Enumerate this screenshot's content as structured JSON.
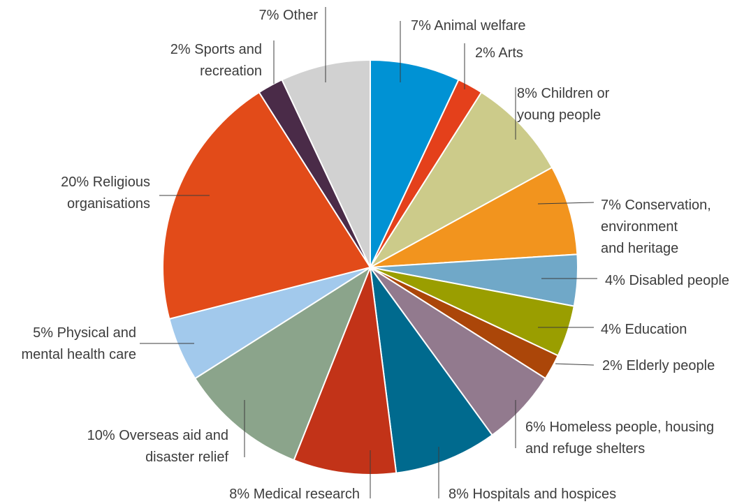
{
  "chart_data": {
    "type": "pie",
    "slices": [
      {
        "key": "animal",
        "label_lines": [
          "7% Animal welfare"
        ],
        "value": 7,
        "color": "#0092d4"
      },
      {
        "key": "arts",
        "label_lines": [
          "2% Arts"
        ],
        "value": 2,
        "color": "#e4401b"
      },
      {
        "key": "children",
        "label_lines": [
          "8% Children or",
          "young people"
        ],
        "value": 8,
        "color": "#cccb8a"
      },
      {
        "key": "conservation",
        "label_lines": [
          "7% Conservation,",
          "environment",
          "and heritage"
        ],
        "value": 7,
        "color": "#f2941e"
      },
      {
        "key": "disabled",
        "label_lines": [
          "4% Disabled people"
        ],
        "value": 4,
        "color": "#70a8c8"
      },
      {
        "key": "education",
        "label_lines": [
          "4% Education"
        ],
        "value": 4,
        "color": "#9a9e00"
      },
      {
        "key": "elderly",
        "label_lines": [
          "2% Elderly people"
        ],
        "value": 2,
        "color": "#ab4609"
      },
      {
        "key": "homeless",
        "label_lines": [
          "6% Homeless people, housing",
          "and refuge shelters"
        ],
        "value": 6,
        "color": "#927a8e"
      },
      {
        "key": "hospitals",
        "label_lines": [
          "8% Hospitals and hospices"
        ],
        "value": 8,
        "color": "#006a8e"
      },
      {
        "key": "medical",
        "label_lines": [
          "8% Medical research"
        ],
        "value": 8,
        "color": "#c23318"
      },
      {
        "key": "overseas",
        "label_lines": [
          "10% Overseas aid and",
          "disaster relief"
        ],
        "value": 10,
        "color": "#8ba48b"
      },
      {
        "key": "physical",
        "label_lines": [
          "5% Physical and",
          "mental health care"
        ],
        "value": 5,
        "color": "#a2c9ec"
      },
      {
        "key": "religious",
        "label_lines": [
          "20% Religious",
          "organisations"
        ],
        "value": 20,
        "color": "#e24b19"
      },
      {
        "key": "sports",
        "label_lines": [
          "2% Sports and",
          "recreation"
        ],
        "value": 2,
        "color": "#4a2b48"
      },
      {
        "key": "other",
        "label_lines": [
          "7% Other"
        ],
        "value": 7,
        "color": "#d1d1d1"
      }
    ]
  }
}
